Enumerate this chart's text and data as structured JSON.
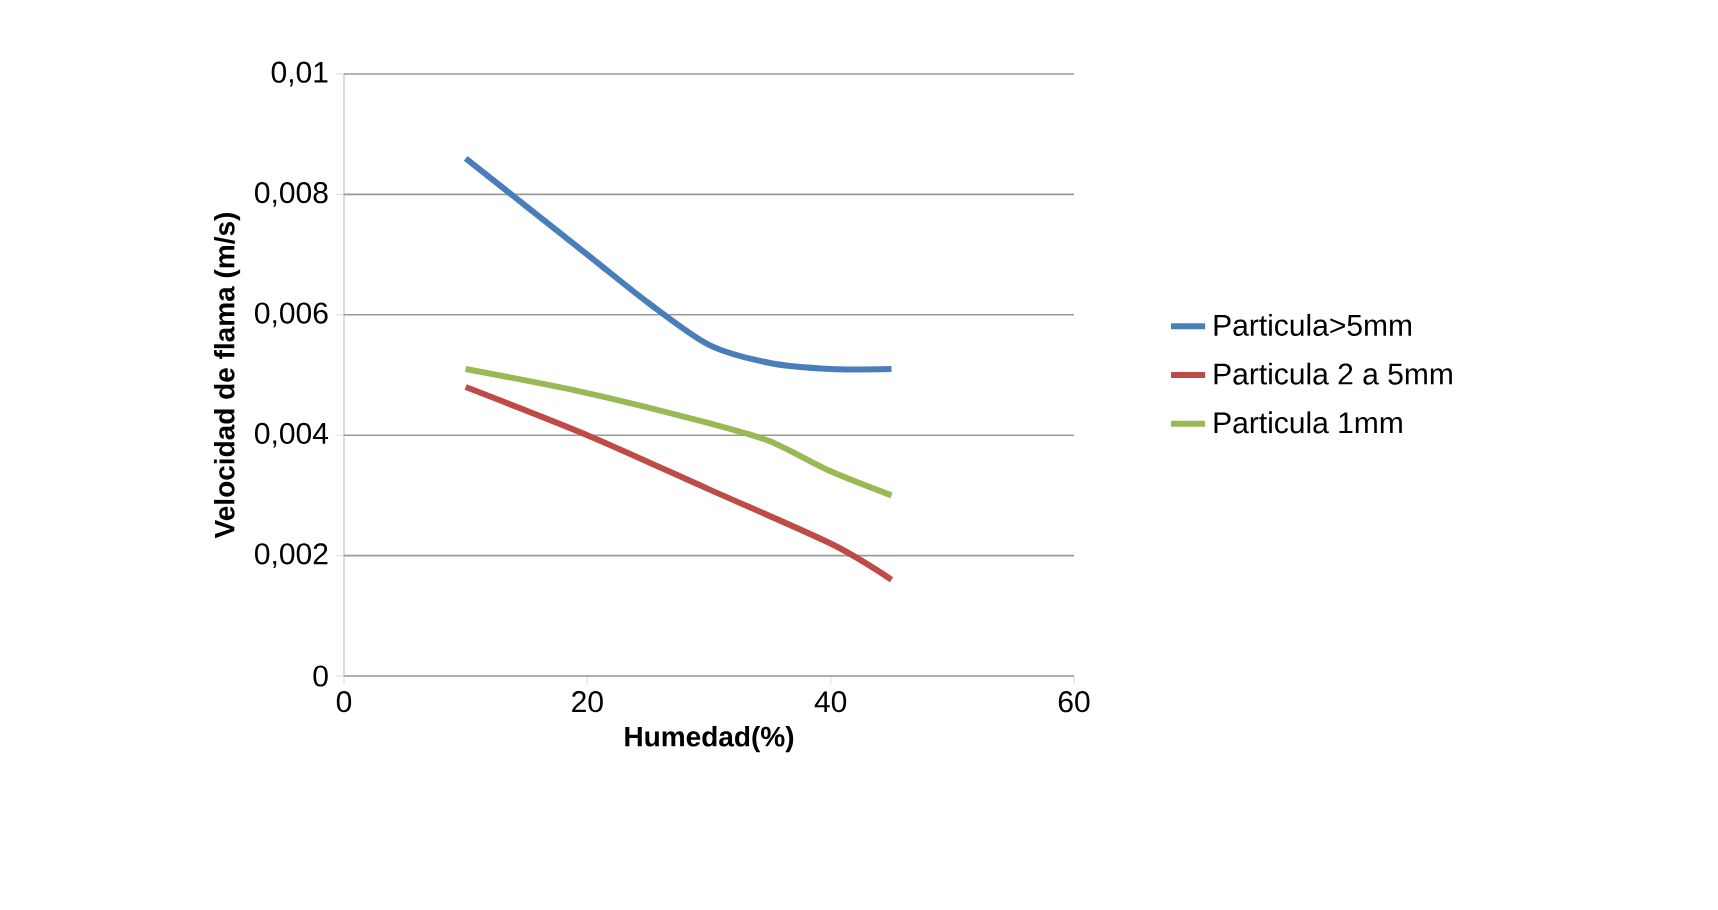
{
  "chart_data": {
    "type": "line",
    "xlabel": "Humedad(%)",
    "ylabel": "Velocidad de flama (m/s)",
    "xlim": [
      0,
      60
    ],
    "xticks": [
      0,
      20,
      40,
      60
    ],
    "ylim": [
      0,
      0.01
    ],
    "yticks": [
      {
        "value": 0,
        "label": "0"
      },
      {
        "value": 0.002,
        "label": "0,002"
      },
      {
        "value": 0.004,
        "label": "0,004"
      },
      {
        "value": 0.006,
        "label": "0,006"
      },
      {
        "value": 0.008,
        "label": "0,008"
      },
      {
        "value": 0.01,
        "label": "0,01"
      }
    ],
    "grid": "y",
    "legend": "right",
    "marker": "none",
    "line_style": "solid",
    "series": [
      {
        "name": "Particula>5mm",
        "color": "#4a7ebb",
        "x": [
          10,
          20,
          25,
          30,
          35,
          40,
          45
        ],
        "values": [
          0.0086,
          0.007,
          0.0062,
          0.0055,
          0.0052,
          0.0051,
          0.0051
        ]
      },
      {
        "name": "Particula 2 a 5mm",
        "color": "#be4b48",
        "x": [
          10,
          20,
          30,
          40,
          45
        ],
        "values": [
          0.0048,
          0.004,
          0.0031,
          0.0022,
          0.0016
        ]
      },
      {
        "name": "Particula 1mm",
        "color": "#98b954",
        "x": [
          10,
          20,
          30,
          35,
          40,
          45
        ],
        "values": [
          0.0051,
          0.0047,
          0.0042,
          0.0039,
          0.0034,
          0.003
        ]
      }
    ]
  }
}
